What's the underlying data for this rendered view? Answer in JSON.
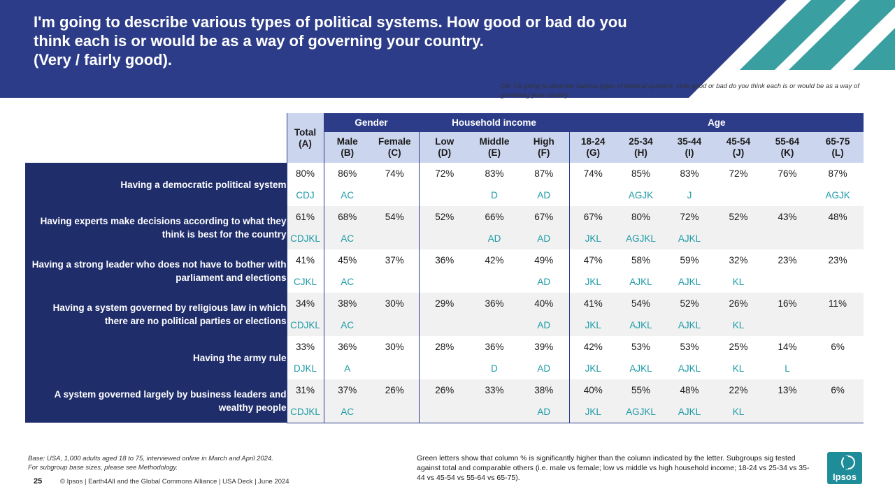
{
  "header": {
    "title": "I'm going to describe various types of political systems. How good or bad do you\nthink each is or would be as a way of governing your country.\n(Very / fairly good).",
    "question_note": "Q9. I'm going to describe various types of political systems. How good or bad do you think each is or would be as a way of governing your country."
  },
  "colors": {
    "header_blue": "#2c3c88",
    "row_label_navy": "#1f2d6b",
    "subheader_light": "#ccd5ee",
    "teal_accent": "#1f8d99",
    "sig_letters": "#1d9aa6"
  },
  "table": {
    "total_header": "Total\n(A)",
    "groups": [
      {
        "label": "Gender"
      },
      {
        "label": "Household income"
      },
      {
        "label": "Age"
      }
    ],
    "columns": [
      "Male\n(B)",
      "Female\n(C)",
      "Low\n(D)",
      "Middle\n(E)",
      "High\n(F)",
      "18-24\n(G)",
      "25-34\n(H)",
      "35-44\n(I)",
      "45-54\n(J)",
      "55-64\n(K)",
      "65-75\n(L)"
    ],
    "rows": [
      {
        "label": "Having a democratic political system",
        "values": [
          "80%",
          "86%",
          "74%",
          "72%",
          "83%",
          "87%",
          "74%",
          "85%",
          "83%",
          "72%",
          "76%",
          "87%"
        ],
        "sig": [
          "CDJ",
          "AC",
          "",
          "",
          "D",
          "AD",
          "",
          "AGJK",
          "J",
          "",
          "",
          "AGJK"
        ]
      },
      {
        "label": "Having experts make decisions according to what they think is best for the country",
        "values": [
          "61%",
          "68%",
          "54%",
          "52%",
          "66%",
          "67%",
          "67%",
          "80%",
          "72%",
          "52%",
          "43%",
          "48%"
        ],
        "sig": [
          "CDJKL",
          "AC",
          "",
          "",
          "AD",
          "AD",
          "JKL",
          "AGJKL",
          "AJKL",
          "",
          "",
          ""
        ]
      },
      {
        "label": "Having a strong leader who does not have to bother with parliament and elections",
        "values": [
          "41%",
          "45%",
          "37%",
          "36%",
          "42%",
          "49%",
          "47%",
          "58%",
          "59%",
          "32%",
          "23%",
          "23%"
        ],
        "sig": [
          "CJKL",
          "AC",
          "",
          "",
          "",
          "AD",
          "JKL",
          "AJKL",
          "AJKL",
          "KL",
          "",
          ""
        ]
      },
      {
        "label": "Having a system  governed by religious law in which there are no political parties or elections",
        "values": [
          "34%",
          "38%",
          "30%",
          "29%",
          "36%",
          "40%",
          "41%",
          "54%",
          "52%",
          "26%",
          "16%",
          "11%"
        ],
        "sig": [
          "CDJKL",
          "AC",
          "",
          "",
          "",
          "AD",
          "JKL",
          "AJKL",
          "AJKL",
          "KL",
          "",
          ""
        ]
      },
      {
        "label": "Having the army  rule",
        "values": [
          "33%",
          "36%",
          "30%",
          "28%",
          "36%",
          "39%",
          "42%",
          "53%",
          "53%",
          "25%",
          "14%",
          "6%"
        ],
        "sig": [
          "DJKL",
          "A",
          "",
          "",
          "D",
          "AD",
          "JKL",
          "AJKL",
          "AJKL",
          "KL",
          "L",
          ""
        ]
      },
      {
        "label": "A  system governed largely by business leaders and wealthy people",
        "values": [
          "31%",
          "37%",
          "26%",
          "26%",
          "33%",
          "38%",
          "40%",
          "55%",
          "48%",
          "22%",
          "13%",
          "6%"
        ],
        "sig": [
          "CDJKL",
          "AC",
          "",
          "",
          "",
          "AD",
          "JKL",
          "AGJKL",
          "AJKL",
          "KL",
          "",
          ""
        ]
      }
    ]
  },
  "footer": {
    "base_note": "Base: USA,  1,000 adults aged 18 to 75, interviewed online in March and April 2024.\nFor subgroup base sizes, please see Methodology.",
    "page_number": "25",
    "copyright": "© Ipsos | Earth4All and the Global Commons Alliance | USA Deck | June 2024",
    "legend_note": "Green letters show that column % is significantly higher than the column indicated by the letter.  Subgroups sig tested against total and comparable others (i.e. male vs female; low vs middle vs high household income; 18-24 vs 25-34 vs 35-44 vs 45-54 vs 55-64 vs 65-75).",
    "logo_text": "Ipsos"
  }
}
